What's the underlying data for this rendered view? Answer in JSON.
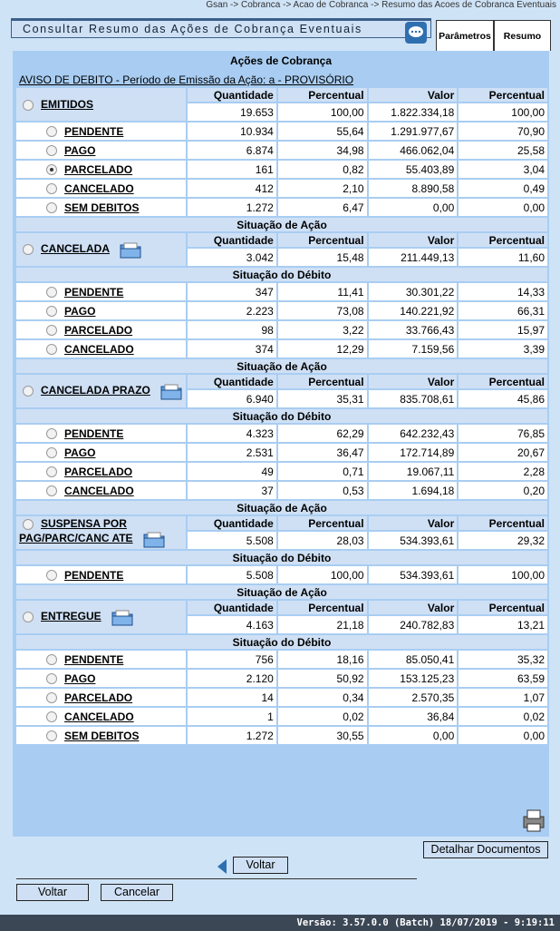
{
  "breadcrumb": "Gsan -> Cobranca -> Acao de Cobranca -> Resumo das Acoes de Cobranca Eventuais",
  "header": {
    "title": "Consultar Resumo das Ações de Cobrança Eventuais",
    "tabs": [
      "Parâmetros",
      "Resumo"
    ]
  },
  "section_title": "Ações de Cobrança",
  "action_header": "AVISO DE DEBITO - Período de Emissão da Ação: a - PROVISÓRIO",
  "columns": [
    "Quantidade",
    "Percentual",
    "Valor",
    "Percentual"
  ],
  "situacao_acao_label": "Situação de Ação",
  "situacao_debito_label": "Situação do Débito",
  "groups": [
    {
      "label": "EMITIDOS",
      "totals": [
        "19.653",
        "100,00",
        "1.822.334,18",
        "100,00"
      ],
      "rows": [
        {
          "label": "PENDENTE",
          "values": [
            "10.934",
            "55,64",
            "1.291.977,67",
            "70,90"
          ]
        },
        {
          "label": "PAGO",
          "values": [
            "6.874",
            "34,98",
            "466.062,04",
            "25,58"
          ]
        },
        {
          "label": "PARCELADO",
          "values": [
            "161",
            "0,82",
            "55.403,89",
            "3,04"
          ],
          "selected": true
        },
        {
          "label": "CANCELADO",
          "values": [
            "412",
            "2,10",
            "8.890,58",
            "0,49"
          ]
        },
        {
          "label": "SEM DEBITOS",
          "values": [
            "1.272",
            "6,47",
            "0,00",
            "0,00"
          ]
        }
      ]
    },
    {
      "label": "CANCELADA",
      "totals": [
        "3.042",
        "15,48",
        "211.449,13",
        "11,60"
      ],
      "rows": [
        {
          "label": "PENDENTE",
          "values": [
            "347",
            "11,41",
            "30.301,22",
            "14,33"
          ]
        },
        {
          "label": "PAGO",
          "values": [
            "2.223",
            "73,08",
            "140.221,92",
            "66,31"
          ]
        },
        {
          "label": "PARCELADO",
          "values": [
            "98",
            "3,22",
            "33.766,43",
            "15,97"
          ]
        },
        {
          "label": "CANCELADO",
          "values": [
            "374",
            "12,29",
            "7.159,56",
            "3,39"
          ]
        }
      ]
    },
    {
      "label": "CANCELADA PRAZO",
      "totals": [
        "6.940",
        "35,31",
        "835.708,61",
        "45,86"
      ],
      "rows": [
        {
          "label": "PENDENTE",
          "values": [
            "4.323",
            "62,29",
            "642.232,43",
            "76,85"
          ]
        },
        {
          "label": "PAGO",
          "values": [
            "2.531",
            "36,47",
            "172.714,89",
            "20,67"
          ]
        },
        {
          "label": "PARCELADO",
          "values": [
            "49",
            "0,71",
            "19.067,11",
            "2,28"
          ]
        },
        {
          "label": "CANCELADO",
          "values": [
            "37",
            "0,53",
            "1.694,18",
            "0,20"
          ]
        }
      ]
    },
    {
      "label": "SUSPENSA POR PAG/PARC/CANC ATE",
      "totals": [
        "5.508",
        "28,03",
        "534.393,61",
        "29,32"
      ],
      "rows": [
        {
          "label": "PENDENTE",
          "values": [
            "5.508",
            "100,00",
            "534.393,61",
            "100,00"
          ]
        }
      ]
    },
    {
      "label": "ENTREGUE",
      "totals": [
        "4.163",
        "21,18",
        "240.782,83",
        "13,21"
      ],
      "rows": [
        {
          "label": "PENDENTE",
          "values": [
            "756",
            "18,16",
            "85.050,41",
            "35,32"
          ]
        },
        {
          "label": "PAGO",
          "values": [
            "2.120",
            "50,92",
            "153.125,23",
            "63,59"
          ]
        },
        {
          "label": "PARCELADO",
          "values": [
            "14",
            "0,34",
            "2.570,35",
            "1,07"
          ]
        },
        {
          "label": "CANCELADO",
          "values": [
            "1",
            "0,02",
            "36,84",
            "0,02"
          ]
        },
        {
          "label": "SEM DEBITOS",
          "values": [
            "1.272",
            "30,55",
            "0,00",
            "0,00"
          ]
        }
      ]
    }
  ],
  "buttons": {
    "detalhar": "Detalhar Documentos",
    "voltar": "Voltar",
    "bottom": [
      "Voltar",
      "Cancelar"
    ]
  },
  "footer": "Versão: 3.57.0.0 (Batch) 18/07/2019 - 9:19:11"
}
